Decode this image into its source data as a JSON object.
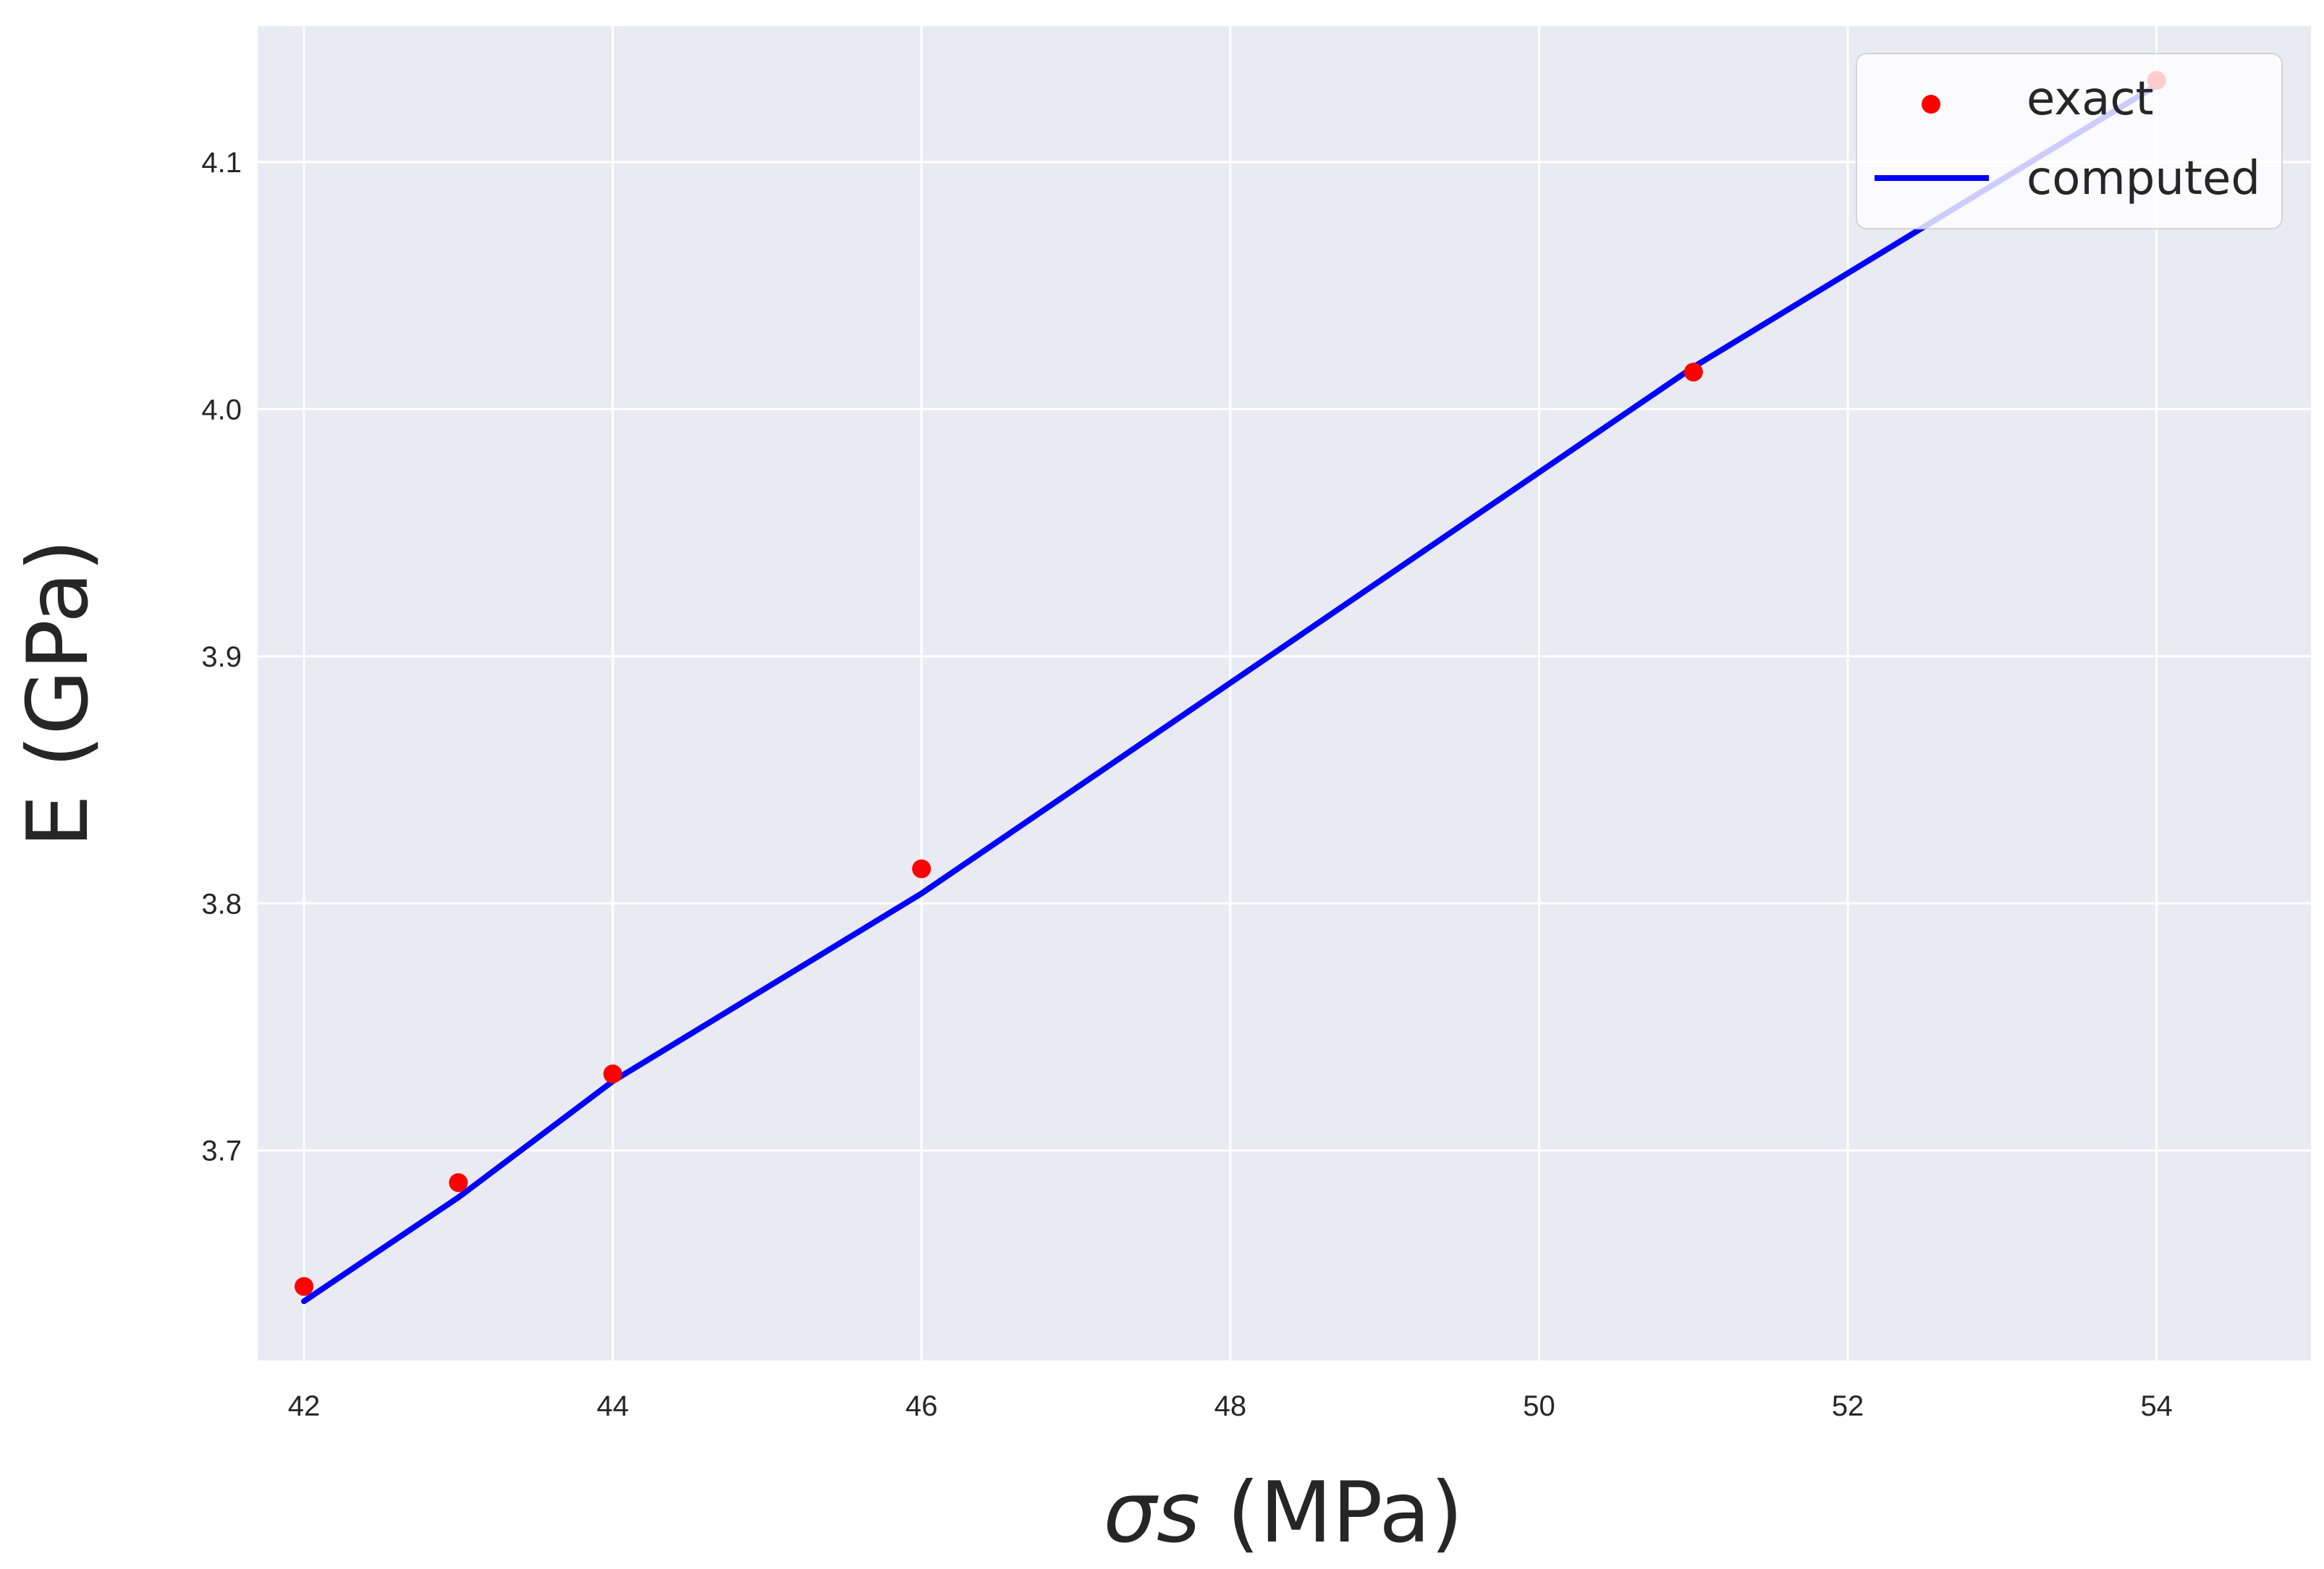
{
  "chart_data": {
    "type": "line",
    "title": "",
    "xlabel": {
      "symbol": "σs",
      "unit": " (MPa)"
    },
    "ylabel": "E (GPa)",
    "xlim": [
      41.7,
      55.0
    ],
    "ylim": [
      3.615,
      4.155
    ],
    "xticks": [
      42,
      44,
      46,
      48,
      50,
      52,
      54
    ],
    "yticks": [
      3.7,
      3.8,
      3.9,
      4.0,
      4.1
    ],
    "grid": true,
    "legend_position": "top-right",
    "series": [
      {
        "name": "exact",
        "kind": "scatter",
        "color": "#ff0000",
        "x": [
          42,
          43,
          44,
          46,
          51,
          54
        ],
        "y": [
          3.645,
          3.687,
          3.731,
          3.814,
          4.015,
          4.133
        ]
      },
      {
        "name": "computed",
        "kind": "line",
        "color": "#0000ff",
        "x": [
          42,
          43,
          44,
          46,
          51,
          54
        ],
        "y": [
          3.639,
          3.681,
          3.728,
          3.804,
          4.017,
          4.131
        ]
      }
    ]
  },
  "colors": {
    "plot_background": "#eaeaf2",
    "grid": "#ffffff",
    "text": "#262626"
  }
}
